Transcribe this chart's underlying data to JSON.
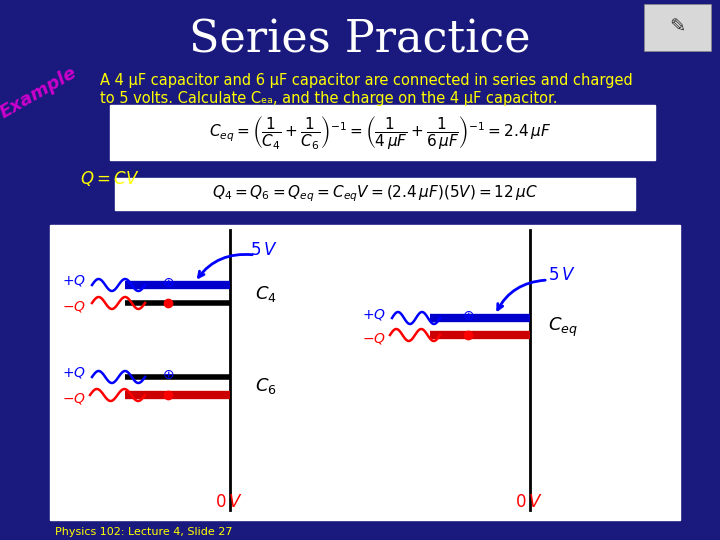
{
  "title": "Series Practice",
  "title_color": "#FFFFFF",
  "title_fontsize": 32,
  "bg_color": "#1a1a7e",
  "problem_line1": "A 4 μF capacitor and 6 μF capacitor are connected in series and charged",
  "problem_line2": "to 5 volts. Calculate Cₑₐ, and the charge on the 4 μF capacitor.",
  "footer_text": "Physics 102: Lecture 4, Slide 27",
  "formula1": "$C_{eq} = \\left(\\dfrac{1}{C_4}+\\dfrac{1}{C_6}\\right)^{-1} = \\left(\\dfrac{1}{4\\,\\mu F}+\\dfrac{1}{6\\,\\mu F}\\right)^{-1} = 2.4\\,\\mu F$",
  "formula2": "$Q_4 = Q_6 = Q_{eq} = C_{eq}V = (2.4\\,\\mu F)(5V) = 12\\,\\mu C$"
}
